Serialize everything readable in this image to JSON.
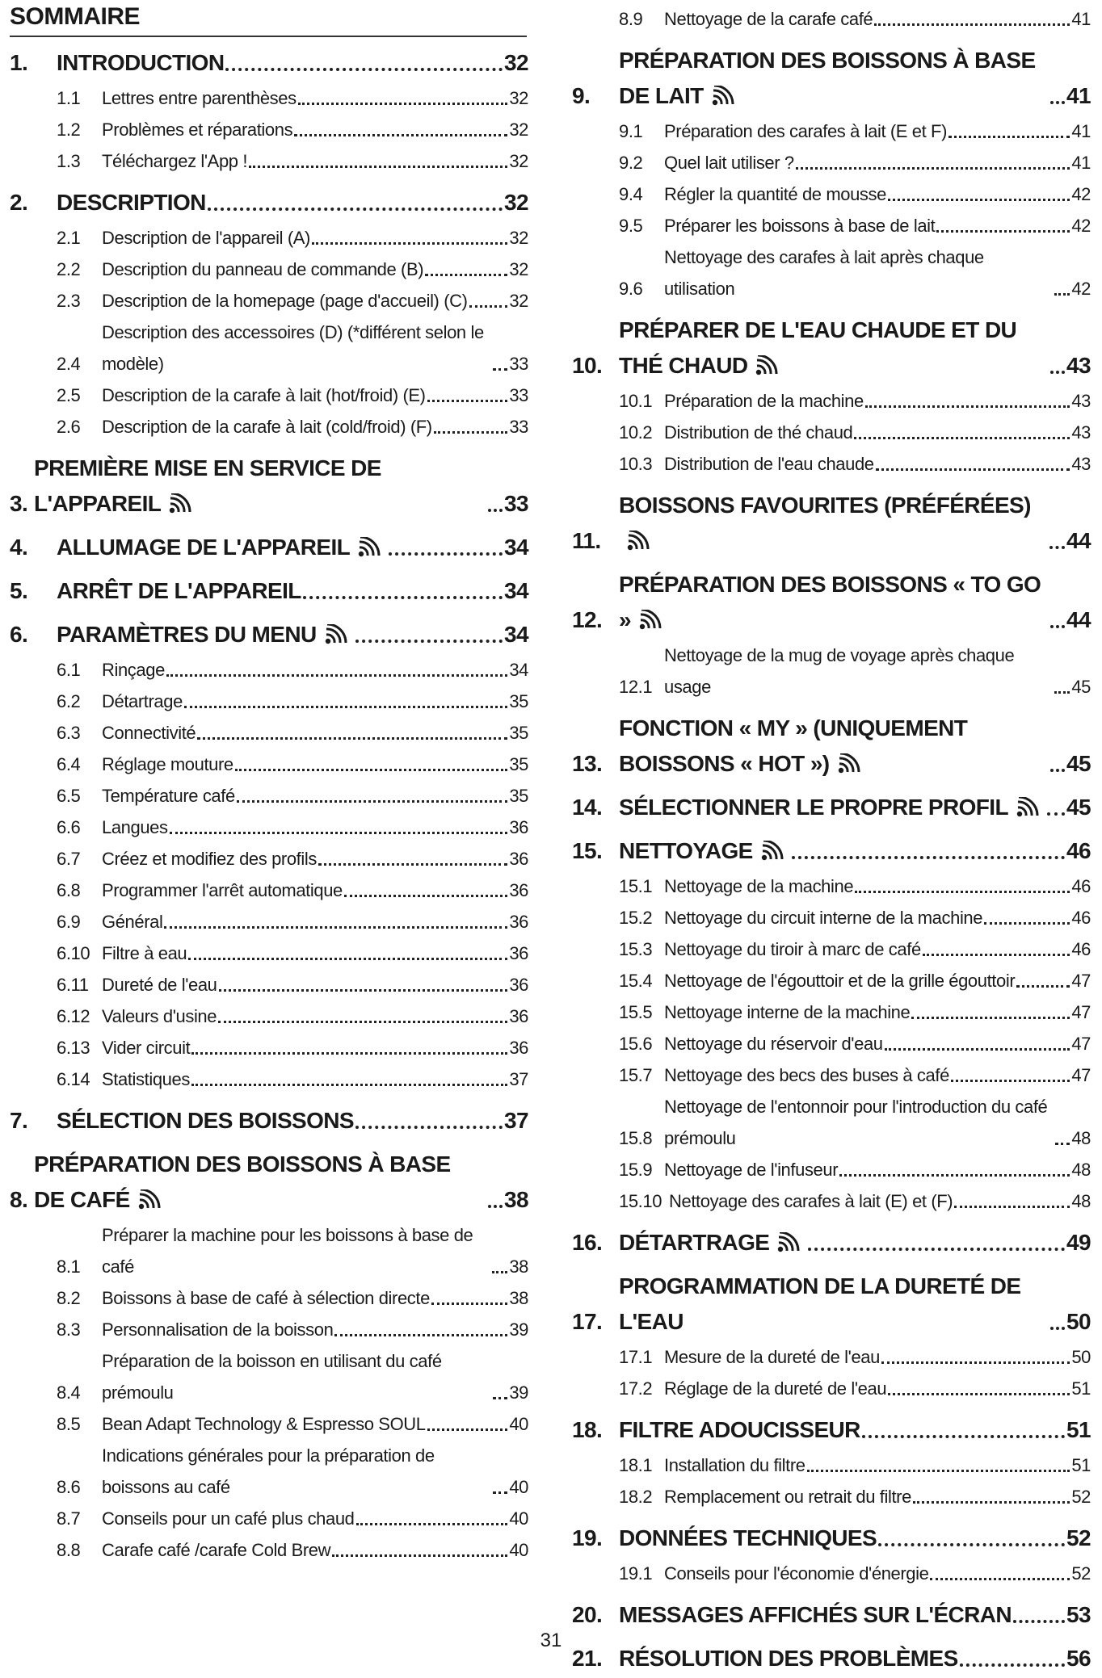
{
  "title": "SOMMAIRE",
  "page_number": "31",
  "columns": [
    {
      "entries": [
        {
          "num": "1.",
          "text": "INTRODUCTION",
          "page": 32,
          "level": 1
        },
        {
          "num": "1.1",
          "text": "Lettres entre parenthèses",
          "page": 32,
          "level": 2
        },
        {
          "num": "1.2",
          "text": "Problèmes et réparations",
          "page": 32,
          "level": 2
        },
        {
          "num": "1.3",
          "text": "Téléchargez l'App !",
          "page": 32,
          "level": 2
        },
        {
          "num": "2.",
          "text": "DESCRIPTION",
          "page": 32,
          "level": 1
        },
        {
          "num": "2.1",
          "text": "Description de l'appareil (A)",
          "page": 32,
          "level": 2
        },
        {
          "num": "2.2",
          "text": "Description du panneau de commande (B)",
          "page": 32,
          "level": 2
        },
        {
          "num": "2.3",
          "text": "Description de la homepage (page d'accueil) (C)",
          "page": 32,
          "level": 2
        },
        {
          "num": "2.4",
          "text": "Description des accessoires (D) (*différent selon le modèle)",
          "page": 33,
          "level": 2
        },
        {
          "num": "2.5",
          "text": "Description de la carafe à lait (hot/froid) (E)",
          "page": 33,
          "level": 2
        },
        {
          "num": "2.6",
          "text": "Description de la carafe à lait (cold/froid) (F)",
          "page": 33,
          "level": 2
        },
        {
          "num": "3.",
          "text": "PREMIÈRE MISE EN SERVICE DE L'APPAREIL",
          "page": 33,
          "level": 1,
          "icon": "wifi"
        },
        {
          "num": "4.",
          "text": "ALLUMAGE DE L'APPAREIL",
          "page": 34,
          "level": 1,
          "icon": "wifi"
        },
        {
          "num": "5.",
          "text": "ARRÊT DE L'APPAREIL",
          "page": 34,
          "level": 1
        },
        {
          "num": "6.",
          "text": "PARAMÈTRES DU MENU",
          "page": 34,
          "level": 1,
          "icon": "wifi"
        },
        {
          "num": "6.1",
          "text": "Rinçage",
          "page": 34,
          "level": 2
        },
        {
          "num": "6.2",
          "text": "Détartrage",
          "page": 35,
          "level": 2
        },
        {
          "num": "6.3",
          "text": "Connectivité",
          "page": 35,
          "level": 2
        },
        {
          "num": "6.4",
          "text": "Réglage mouture",
          "page": 35,
          "level": 2
        },
        {
          "num": "6.5",
          "text": "Température café",
          "page": 35,
          "level": 2
        },
        {
          "num": "6.6",
          "text": "Langues",
          "page": 36,
          "level": 2
        },
        {
          "num": "6.7",
          "text": "Créez et modifiez des profils",
          "page": 36,
          "level": 2
        },
        {
          "num": "6.8",
          "text": "Programmer l'arrêt automatique",
          "page": 36,
          "level": 2
        },
        {
          "num": "6.9",
          "text": "Général",
          "page": 36,
          "level": 2
        },
        {
          "num": "6.10",
          "text": "Filtre à eau",
          "page": 36,
          "level": 2
        },
        {
          "num": "6.11",
          "text": "Dureté de l'eau",
          "page": 36,
          "level": 2
        },
        {
          "num": "6.12",
          "text": "Valeurs d'usine",
          "page": 36,
          "level": 2
        },
        {
          "num": "6.13",
          "text": "Vider circuit",
          "page": 36,
          "level": 2
        },
        {
          "num": "6.14",
          "text": "Statistiques",
          "page": 37,
          "level": 2
        },
        {
          "num": "7.",
          "text": "SÉLECTION DES BOISSONS",
          "page": 37,
          "level": 1
        },
        {
          "num": "8.",
          "text": "PRÉPARATION DES BOISSONS À BASE DE CAFÉ",
          "page": 38,
          "level": 1,
          "icon": "wifi"
        },
        {
          "num": "8.1",
          "text": "Préparer la machine pour les boissons à base de café",
          "page": 38,
          "level": 2
        },
        {
          "num": "8.2",
          "text": "Boissons à base de café à sélection directe",
          "page": 38,
          "level": 2
        },
        {
          "num": "8.3",
          "text": "Personnalisation de la boisson",
          "page": 39,
          "level": 2
        },
        {
          "num": "8.4",
          "text": "Préparation de la boisson en utilisant du café prémoulu",
          "page": 39,
          "level": 2
        },
        {
          "num": "8.5",
          "text": "Bean Adapt Technology & Espresso SOUL",
          "page": 40,
          "level": 2
        },
        {
          "num": "8.6",
          "text": "Indications générales pour la préparation de boissons au café",
          "page": 40,
          "level": 2
        },
        {
          "num": "8.7",
          "text": "Conseils pour un café plus chaud",
          "page": 40,
          "level": 2
        },
        {
          "num": "8.8",
          "text": "Carafe café /carafe Cold Brew",
          "page": 40,
          "level": 2
        }
      ]
    },
    {
      "entries": [
        {
          "num": "8.9",
          "text": "Nettoyage de la carafe café",
          "page": 41,
          "level": 2
        },
        {
          "num": "9.",
          "text": "PRÉPARATION DES BOISSONS À BASE DE LAIT",
          "page": 41,
          "level": 1,
          "icon": "wifi"
        },
        {
          "num": "9.1",
          "text": "Préparation des carafes à lait (E et F)",
          "page": 41,
          "level": 2
        },
        {
          "num": "9.2",
          "text": "Quel lait utiliser ?",
          "page": 41,
          "level": 2
        },
        {
          "num": "9.4",
          "text": "Régler la quantité de mousse",
          "page": 42,
          "level": 2
        },
        {
          "num": "9.5",
          "text": "Préparer les boissons à base de lait",
          "page": 42,
          "level": 2
        },
        {
          "num": "9.6",
          "text": "Nettoyage des carafes à lait après chaque utilisation",
          "page": 42,
          "level": 2
        },
        {
          "num": "10.",
          "text": "PRÉPARER DE L'EAU CHAUDE ET DU THÉ CHAUD",
          "page": 43,
          "level": 1,
          "icon": "wifi"
        },
        {
          "num": "10.1",
          "text": "Préparation de la machine",
          "page": 43,
          "level": 2
        },
        {
          "num": "10.2",
          "text": "Distribution de thé chaud",
          "page": 43,
          "level": 2
        },
        {
          "num": "10.3",
          "text": "Distribution de l'eau chaude",
          "page": 43,
          "level": 2
        },
        {
          "num": "11.",
          "text": "BOISSONS FAVOURITES (PRÉFÉRÉES)",
          "page": 44,
          "level": 1,
          "icon": "wifi"
        },
        {
          "num": "12.",
          "text": "PRÉPARATION DES BOISSONS « TO GO »",
          "page": 44,
          "level": 1,
          "icon": "wifi"
        },
        {
          "num": "12.1",
          "text": "Nettoyage de la mug de voyage après chaque usage",
          "page": 45,
          "level": 2
        },
        {
          "num": "13.",
          "text": "FONCTION « MY » (UNIQUEMENT BOISSONS « HOT »)",
          "page": 45,
          "level": 1,
          "icon": "wifi"
        },
        {
          "num": "14.",
          "text": "SÉLECTIONNER LE PROPRE PROFIL",
          "page": 45,
          "level": 1,
          "icon": "wifi"
        },
        {
          "num": "15.",
          "text": "NETTOYAGE",
          "page": 46,
          "level": 1,
          "icon": "wifi"
        },
        {
          "num": "15.1",
          "text": "Nettoyage de la machine",
          "page": 46,
          "level": 2
        },
        {
          "num": "15.2",
          "text": "Nettoyage du circuit interne de la machine",
          "page": 46,
          "level": 2
        },
        {
          "num": "15.3",
          "text": "Nettoyage du tiroir à marc de café",
          "page": 46,
          "level": 2
        },
        {
          "num": "15.4",
          "text": "Nettoyage de l'égouttoir et de la grille égouttoir",
          "page": 47,
          "level": 2
        },
        {
          "num": "15.5",
          "text": "Nettoyage interne de la machine",
          "page": 47,
          "level": 2
        },
        {
          "num": "15.6",
          "text": "Nettoyage du réservoir d'eau",
          "page": 47,
          "level": 2
        },
        {
          "num": "15.7",
          "text": "Nettoyage des becs des buses à café",
          "page": 47,
          "level": 2
        },
        {
          "num": "15.8",
          "text": "Nettoyage de l'entonnoir pour l'introduction du café prémoulu",
          "page": 48,
          "level": 2
        },
        {
          "num": "15.9",
          "text": "Nettoyage de l'infuseur",
          "page": 48,
          "level": 2
        },
        {
          "num": "15.10",
          "text": "Nettoyage des carafes à lait (E) et (F)",
          "page": 48,
          "level": 2
        },
        {
          "num": "16.",
          "text": "DÉTARTRAGE",
          "page": 49,
          "level": 1,
          "icon": "wifi"
        },
        {
          "num": "17.",
          "text": "PROGRAMMATION DE LA DURETÉ DE L'EAU",
          "page": 50,
          "level": 1
        },
        {
          "num": "17.1",
          "text": "Mesure de la dureté de l'eau",
          "page": 50,
          "level": 2
        },
        {
          "num": "17.2",
          "text": "Réglage de la dureté de l'eau",
          "page": 51,
          "level": 2
        },
        {
          "num": "18.",
          "text": "FILTRE ADOUCISSEUR",
          "page": 51,
          "level": 1
        },
        {
          "num": "18.1",
          "text": "Installation du filtre",
          "page": 51,
          "level": 2
        },
        {
          "num": "18.2",
          "text": "Remplacement ou retrait du filtre",
          "page": 52,
          "level": 2
        },
        {
          "num": "19.",
          "text": "DONNÉES TECHNIQUES",
          "page": 52,
          "level": 1
        },
        {
          "num": "19.1",
          "text": "Conseils pour l'économie d'énergie",
          "page": 52,
          "level": 2
        },
        {
          "num": "20.",
          "text": "MESSAGES AFFICHÉS SUR L'ÉCRAN",
          "page": 53,
          "level": 1
        },
        {
          "num": "21.",
          "text": "RÉSOLUTION DES PROBLÈMES",
          "page": 56,
          "level": 1
        }
      ]
    }
  ]
}
